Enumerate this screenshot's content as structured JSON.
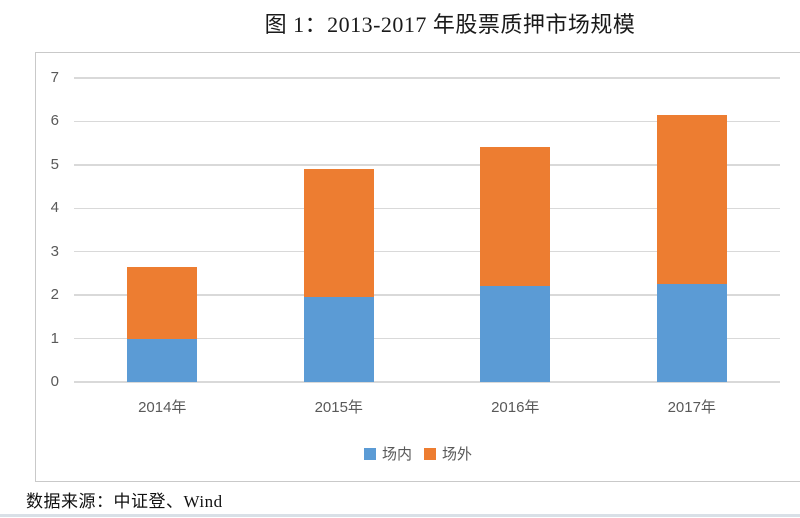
{
  "page": {
    "title": "图 1：2013-2017 年股票质押市场规模",
    "source_note": "数据来源：中证登、Wind"
  },
  "chart_data": {
    "type": "bar",
    "stacked": true,
    "title": "图 1：2013-2017 年股票质押市场规模",
    "categories": [
      "2014年",
      "2015年",
      "2016年",
      "2017年"
    ],
    "series": [
      {
        "name": "场内",
        "color": "#5B9BD5",
        "values": [
          1.0,
          1.95,
          2.2,
          2.25
        ]
      },
      {
        "name": "场外",
        "color": "#ED7D31",
        "values": [
          1.65,
          2.95,
          3.2,
          3.9
        ]
      }
    ],
    "totals": [
      2.65,
      4.9,
      5.4,
      6.15
    ],
    "xlabel": "",
    "ylabel": "",
    "ylim": [
      0,
      7
    ],
    "yticks": [
      0,
      1,
      2,
      3,
      4,
      5,
      6,
      7
    ],
    "grid": true,
    "legend_position": "bottom-center",
    "colors": {
      "gridline": "#d9d9d9",
      "axis_text": "#595959",
      "frame_border": "#c9c9c9",
      "title_text": "#1a1a1a"
    }
  }
}
